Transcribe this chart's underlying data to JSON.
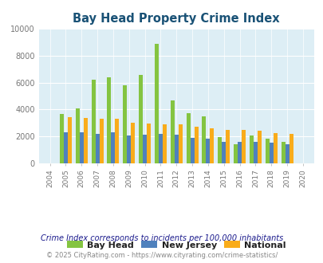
{
  "title": "Bay Head Property Crime Index",
  "years": [
    2004,
    2005,
    2006,
    2007,
    2008,
    2009,
    2010,
    2011,
    2012,
    2013,
    2014,
    2015,
    2016,
    2017,
    2018,
    2019,
    2020
  ],
  "bay_head": [
    0,
    3650,
    4050,
    6200,
    6400,
    5800,
    6600,
    8900,
    4650,
    3700,
    3500,
    1950,
    1400,
    2050,
    1800,
    1600,
    0
  ],
  "new_jersey": [
    0,
    2300,
    2300,
    2200,
    2300,
    2050,
    2100,
    2150,
    2100,
    1900,
    1800,
    1600,
    1600,
    1600,
    1500,
    1400,
    0
  ],
  "national": [
    0,
    3400,
    3350,
    3300,
    3300,
    3000,
    2950,
    2900,
    2900,
    2700,
    2600,
    2500,
    2450,
    2400,
    2250,
    2150,
    0
  ],
  "bay_head_color": "#84c441",
  "new_jersey_color": "#4f81bd",
  "national_color": "#f9ac1b",
  "bg_color": "#ddeef5",
  "ylim": [
    0,
    10000
  ],
  "yticks": [
    0,
    2000,
    4000,
    6000,
    8000,
    10000
  ],
  "legend_labels": [
    "Bay Head",
    "New Jersey",
    "National"
  ],
  "footnote1": "Crime Index corresponds to incidents per 100,000 inhabitants",
  "footnote2": "© 2025 CityRating.com - https://www.cityrating.com/crime-statistics/",
  "bar_width": 0.25
}
